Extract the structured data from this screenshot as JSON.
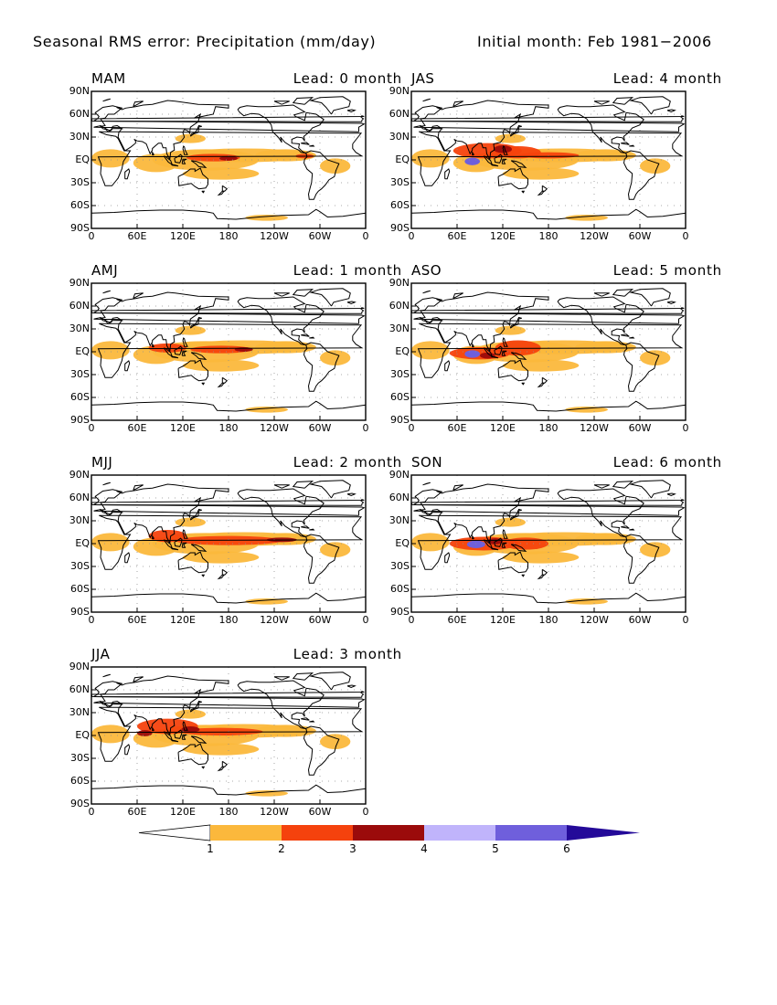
{
  "header": {
    "title": "Seasonal RMS error: Precipitation (mm/day)",
    "initial": "Initial month: Feb 1981−2006"
  },
  "axes": {
    "lat_labels": [
      "90N",
      "60N",
      "30N",
      "EQ",
      "30S",
      "60S",
      "90S"
    ],
    "lon_labels": [
      "0",
      "60E",
      "120E",
      "180",
      "120W",
      "60W",
      "0"
    ]
  },
  "panels": [
    {
      "season": "MAM",
      "lead": "Lead: 0 month"
    },
    {
      "season": "JAS",
      "lead": "Lead: 4 month"
    },
    {
      "season": "AMJ",
      "lead": "Lead: 1 month"
    },
    {
      "season": "ASO",
      "lead": "Lead: 5 month"
    },
    {
      "season": "MJJ",
      "lead": "Lead: 2 month"
    },
    {
      "season": "SON",
      "lead": "Lead: 6 month"
    },
    {
      "season": "JJA",
      "lead": "Lead: 3 month"
    }
  ],
  "colorbar": {
    "labels": [
      "1",
      "2",
      "3",
      "4",
      "5",
      "6"
    ],
    "colors": [
      "#ffffff",
      "#fbb83c",
      "#f5420d",
      "#9b0b0b",
      "#c0b4fb",
      "#6f5fdc",
      "#240a99"
    ]
  },
  "colors": {
    "land_outline": "#000000",
    "grid_dots": "#909090"
  }
}
